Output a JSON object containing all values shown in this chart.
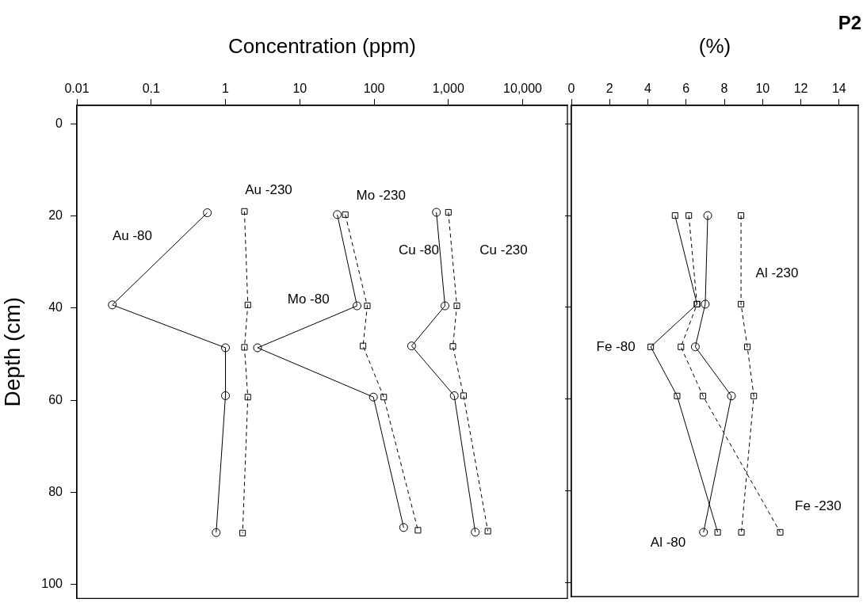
{
  "chart_data": [
    {
      "type": "line",
      "xlabel": "Concentration (ppm)",
      "ylabel": "Depth (cm)",
      "log": "x",
      "xlim": [
        0.01,
        40000
      ],
      "xticks": [
        0.01,
        0.1,
        1,
        10,
        100,
        {
          "value": 1000,
          "label": "1,000"
        },
        {
          "value": 10000,
          "label": "10,000"
        }
      ],
      "ylim": [
        103,
        -4
      ],
      "yticks": [
        0,
        20,
        40,
        60,
        80,
        100
      ],
      "grid": false,
      "legend": false,
      "series": [
        {
          "color": "#000000",
          "marker": "circle",
          "line_style": "solid",
          "x": [
            0.57,
            0.03,
            1.0,
            1.0,
            0.75
          ],
          "values": [
            19.3,
            39.3,
            48.6,
            59,
            88.7
          ]
        },
        {
          "color": "#000000",
          "marker": "square",
          "line_style": "dashed",
          "x": [
            1.8,
            2.0,
            1.8,
            2.0,
            1.7
          ],
          "values": [
            19,
            39.3,
            48.5,
            59.3,
            88.8
          ]
        },
        {
          "color": "#000000",
          "marker": "circle",
          "line_style": "solid",
          "x": [
            32,
            59,
            2.7,
            98,
            250
          ],
          "values": [
            19.7,
            39.5,
            48.6,
            59.3,
            87.6
          ]
        },
        {
          "color": "#000000",
          "marker": "square",
          "line_style": "dashed",
          "x": [
            41,
            81,
            71,
            135,
            390
          ],
          "values": [
            19.7,
            39.5,
            48.2,
            59.3,
            88.2
          ]
        },
        {
          "color": "#000000",
          "marker": "circle",
          "line_style": "solid",
          "x": [
            690,
            900,
            320,
            1200,
            2300
          ],
          "values": [
            19.2,
            39.5,
            48.2,
            59,
            88.6
          ]
        },
        {
          "color": "#000000",
          "marker": "square",
          "line_style": "dashed",
          "x": [
            1000,
            1300,
            1150,
            1600,
            3400
          ],
          "values": [
            19.2,
            39.5,
            48.3,
            59,
            88.4
          ]
        }
      ],
      "annotations": [
        "Au -230",
        "Mo -230",
        "Au -80",
        "Cu -80",
        "Cu -230",
        "Mo -80"
      ]
    },
    {
      "type": "line",
      "title": "P2",
      "xlabel": "(%)",
      "xlim": [
        0,
        15
      ],
      "xticks": [
        0,
        2,
        4,
        6,
        8,
        10,
        12,
        14
      ],
      "ylim": [
        103,
        -4
      ],
      "yticks": [
        0,
        20,
        40,
        60,
        80,
        100
      ],
      "tick_labels": "x",
      "grid": false,
      "legend": false,
      "series": [
        {
          "color": "#000000",
          "marker": "square",
          "line_style": "solid",
          "x": [
            5.42,
            6.57,
            4.15,
            5.53,
            7.65
          ],
          "values": [
            20,
            39.3,
            48.6,
            59.3,
            89
          ]
        },
        {
          "color": "#000000",
          "marker": "circle",
          "line_style": "solid",
          "x": [
            7.13,
            7.0,
            6.48,
            8.37,
            6.91
          ],
          "values": [
            20,
            39.3,
            48.6,
            59.3,
            89
          ]
        },
        {
          "color": "#000000",
          "marker": "square",
          "line_style": "dashed",
          "x": [
            6.14,
            6.57,
            5.73,
            6.88,
            10.92
          ],
          "values": [
            20,
            39.3,
            48.6,
            59.3,
            89
          ]
        },
        {
          "color": "#000000",
          "marker": "square",
          "line_style": "dashed",
          "x": [
            8.87,
            8.87,
            9.2,
            9.54,
            8.89
          ],
          "values": [
            20,
            39.3,
            48.6,
            59.3,
            89
          ]
        }
      ],
      "annotations": [
        "Al -230",
        "Fe -80",
        "Fe -230",
        "Al -80"
      ]
    }
  ]
}
